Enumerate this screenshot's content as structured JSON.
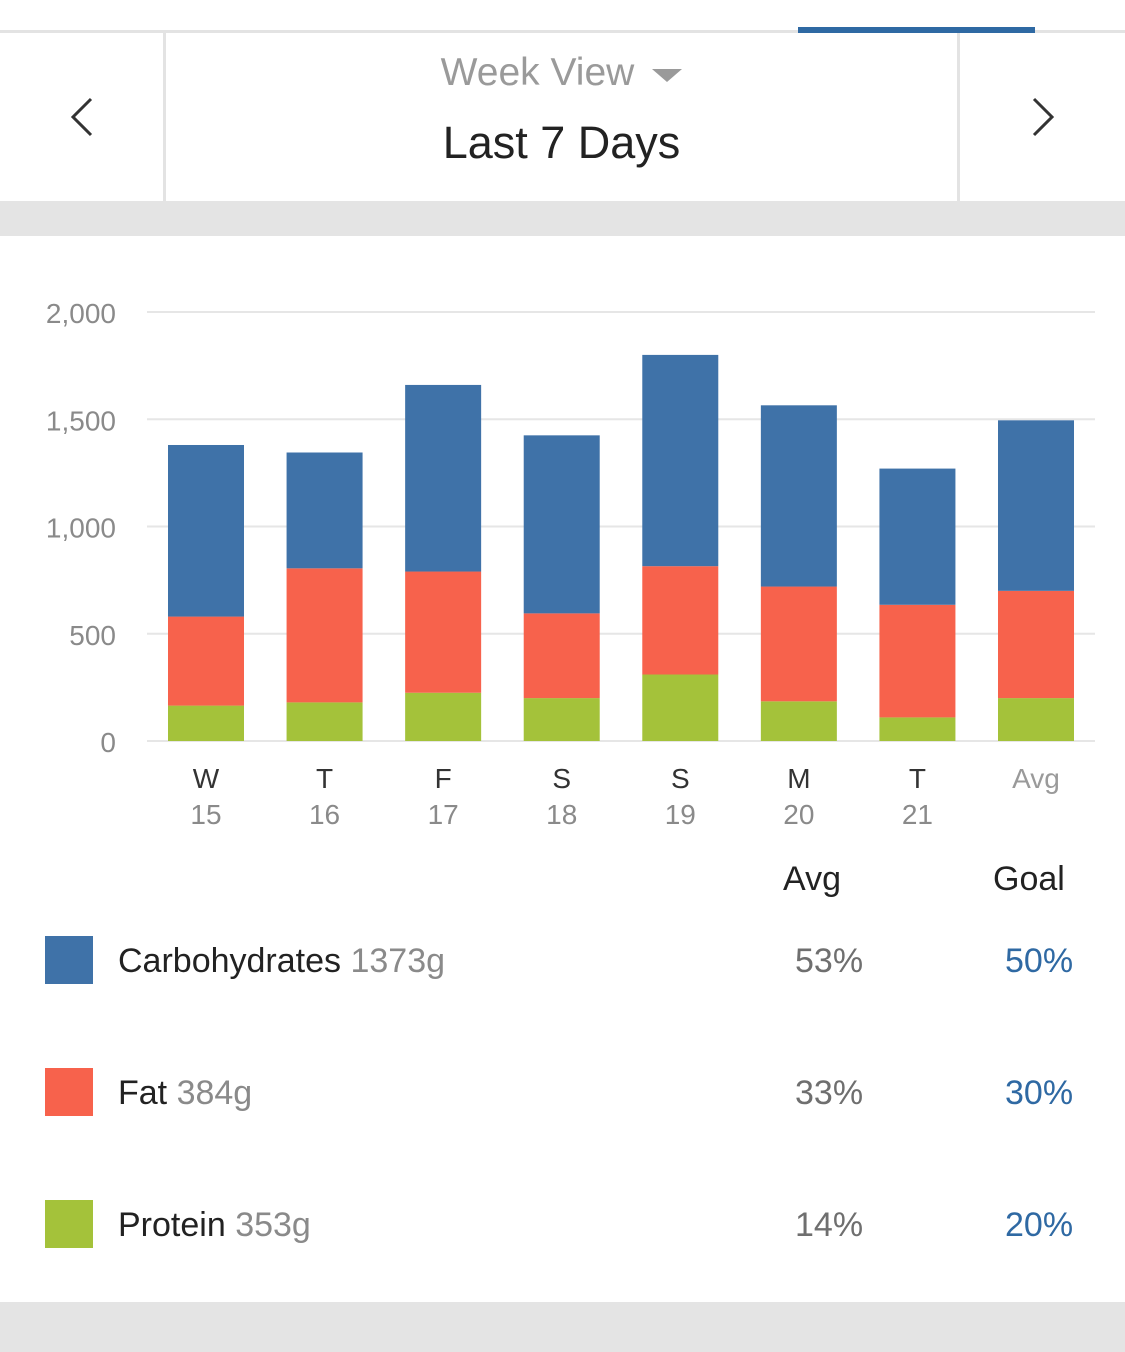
{
  "header": {
    "view_label": "Week View",
    "period_title": "Last 7 Days"
  },
  "colors": {
    "carbohydrates": "#3f72a8",
    "fat": "#f7624c",
    "protein": "#a4c23a",
    "accent": "#2f69a3"
  },
  "chart_data": {
    "type": "bar",
    "stacked": true,
    "categories": [
      {
        "day": "W",
        "date": "15"
      },
      {
        "day": "T",
        "date": "16"
      },
      {
        "day": "F",
        "date": "17"
      },
      {
        "day": "S",
        "date": "18"
      },
      {
        "day": "S",
        "date": "19"
      },
      {
        "day": "M",
        "date": "20"
      },
      {
        "day": "T",
        "date": "21"
      },
      {
        "day": "Avg",
        "date": ""
      }
    ],
    "series": [
      {
        "name": "Protein",
        "color": "#a4c23a",
        "values": [
          165,
          180,
          225,
          200,
          310,
          185,
          110,
          200
        ]
      },
      {
        "name": "Fat",
        "color": "#f7624c",
        "values": [
          415,
          625,
          565,
          395,
          505,
          535,
          525,
          500
        ]
      },
      {
        "name": "Carbohydrates",
        "color": "#3f72a8",
        "values": [
          800,
          540,
          870,
          830,
          985,
          845,
          635,
          795
        ]
      }
    ],
    "yticks": [
      "0",
      "500",
      "1,000",
      "1,500",
      "2,000"
    ],
    "ylim": [
      0,
      2000
    ],
    "grid": true
  },
  "stats": {
    "avg_header": "Avg",
    "goal_header": "Goal",
    "rows": [
      {
        "name": "Carbohydrates",
        "grams": "1373g",
        "avg": "53%",
        "goal": "50%"
      },
      {
        "name": "Fat",
        "grams": "384g",
        "avg": "33%",
        "goal": "30%"
      },
      {
        "name": "Protein",
        "grams": "353g",
        "avg": "14%",
        "goal": "20%"
      }
    ]
  }
}
